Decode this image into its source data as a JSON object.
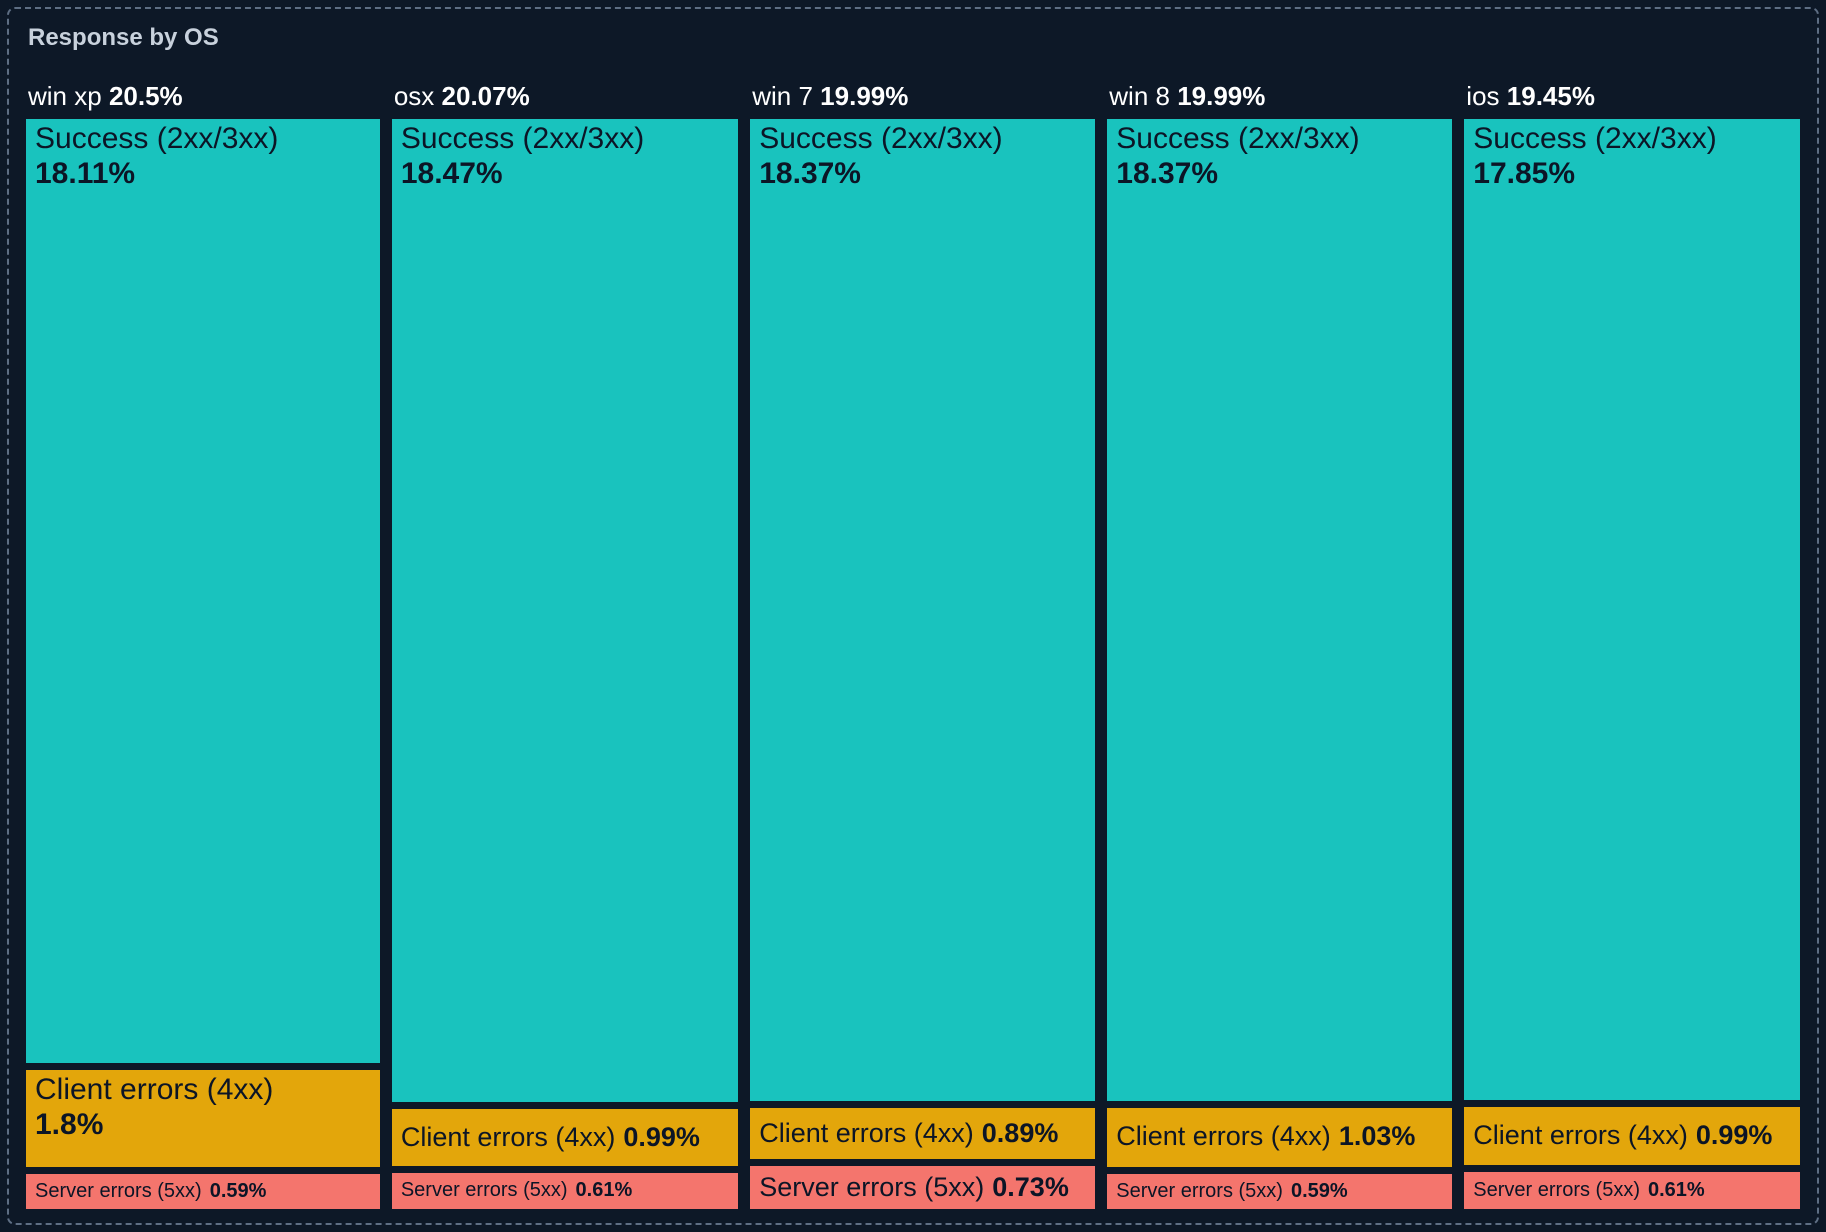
{
  "chart_data": {
    "type": "treemap",
    "title": "Response by OS",
    "value_format": "percent",
    "layout": "columns",
    "groups": [
      {
        "name": "win xp",
        "percent": 20.5,
        "children": [
          {
            "name": "Success (2xx/3xx)",
            "kind": "success",
            "percent": 18.11
          },
          {
            "name": "Client errors (4xx)",
            "kind": "client",
            "percent": 1.8
          },
          {
            "name": "Server errors (5xx)",
            "kind": "server",
            "percent": 0.59
          }
        ]
      },
      {
        "name": "osx",
        "percent": 20.07,
        "children": [
          {
            "name": "Success (2xx/3xx)",
            "kind": "success",
            "percent": 18.47
          },
          {
            "name": "Client errors (4xx)",
            "kind": "client",
            "percent": 0.99
          },
          {
            "name": "Server errors (5xx)",
            "kind": "server",
            "percent": 0.61
          }
        ]
      },
      {
        "name": "win 7",
        "percent": 19.99,
        "children": [
          {
            "name": "Success (2xx/3xx)",
            "kind": "success",
            "percent": 18.37
          },
          {
            "name": "Client errors (4xx)",
            "kind": "client",
            "percent": 0.89
          },
          {
            "name": "Server errors (5xx)",
            "kind": "server",
            "percent": 0.73
          }
        ]
      },
      {
        "name": "win 8",
        "percent": 19.99,
        "children": [
          {
            "name": "Success (2xx/3xx)",
            "kind": "success",
            "percent": 18.37
          },
          {
            "name": "Client errors (4xx)",
            "kind": "client",
            "percent": 1.03
          },
          {
            "name": "Server errors (5xx)",
            "kind": "server",
            "percent": 0.59
          }
        ]
      },
      {
        "name": "ios",
        "percent": 19.45,
        "children": [
          {
            "name": "Success (2xx/3xx)",
            "kind": "success",
            "percent": 17.85
          },
          {
            "name": "Client errors (4xx)",
            "kind": "client",
            "percent": 0.99
          },
          {
            "name": "Server errors (5xx)",
            "kind": "server",
            "percent": 0.61
          }
        ]
      }
    ]
  },
  "colors": {
    "success": "#19C3BE",
    "client": "#E3A60B",
    "server": "#F4756D",
    "background": "#0D1827",
    "panel_border": "#5E6E84",
    "title_text": "#C8D1DC",
    "header_text": "#FFFFFF",
    "block_text": "#0C1526"
  }
}
